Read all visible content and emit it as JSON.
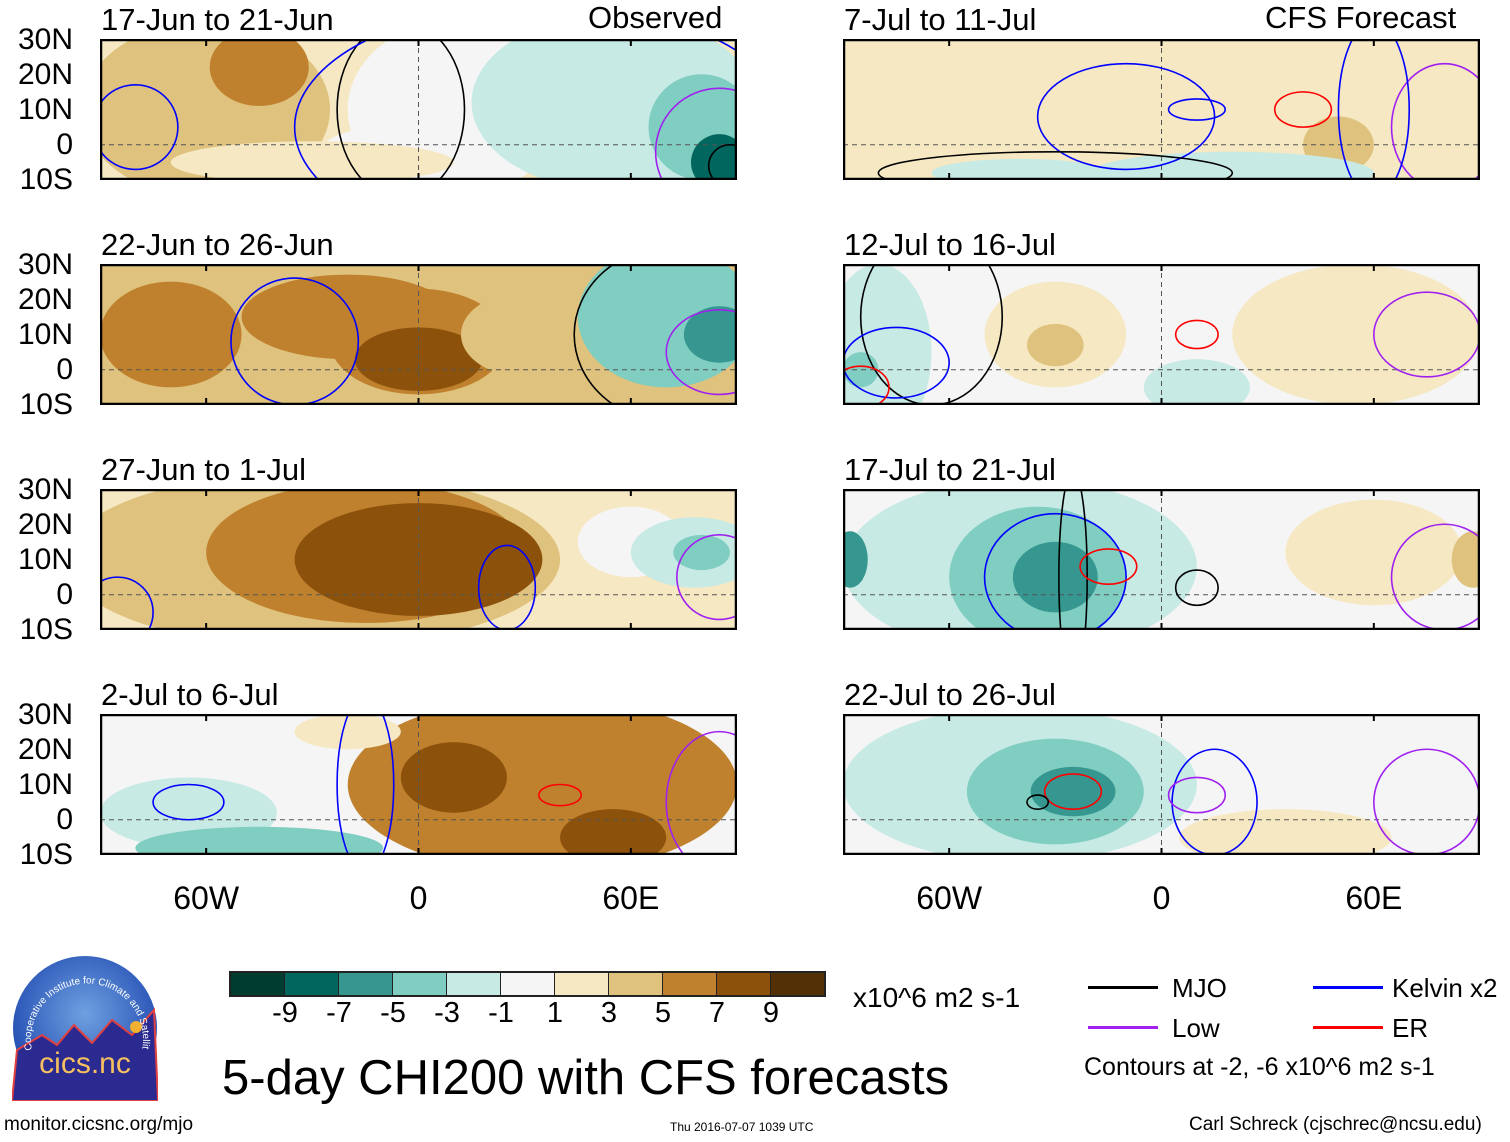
{
  "colorbar": {
    "colors": [
      "#003c30",
      "#01665e",
      "#35978f",
      "#80cdc1",
      "#c7eae5",
      "#f5f5f5",
      "#f6e8c3",
      "#dfc27d",
      "#bf812d",
      "#8c510a",
      "#543005"
    ],
    "bounds": [
      -9,
      -7,
      -5,
      -3,
      -1,
      1,
      3,
      5,
      7,
      9
    ],
    "labels": [
      "-9",
      "-7",
      "-5",
      "-3",
      "-1",
      "1",
      "3",
      "5",
      "7",
      "9"
    ],
    "units": "x10^6 m2 s-1"
  },
  "legend": {
    "items": [
      {
        "label": "MJO",
        "color": "#000000"
      },
      {
        "label": "Kelvin x2",
        "color": "#0000ff"
      },
      {
        "label": "Low",
        "color": "#a020f0"
      },
      {
        "label": "ER",
        "color": "#ff0000"
      }
    ],
    "contours_note": "Contours at -2, -6 x10^6 m2 s-1"
  },
  "title": "5-day CHI200 with CFS forecasts",
  "footer": {
    "url": "monitor.cicsnc.org/mjo",
    "timestamp": "Thu 2016-07-07 1039 UTC",
    "author": "Carl Schreck (cjschrec@ncsu.edu)"
  },
  "logo": {
    "text": "cics.nc",
    "arc_text": "Cooperative Institute for Climate and Satellites"
  },
  "axes": {
    "lat_labels": [
      "30N",
      "20N",
      "10N",
      "0",
      "10S"
    ],
    "lon_labels": [
      "60W",
      "0",
      "60E"
    ],
    "lon_range": [
      -90,
      90
    ],
    "lat_range": [
      -10,
      30
    ]
  },
  "columns": {
    "left_header": "Observed",
    "right_header": "CFS Forecast"
  },
  "panels": [
    {
      "title": "17-Jun to 21-Jun",
      "col": 0,
      "row": 0,
      "bg": 2,
      "blobs": [
        [
          -60,
          10,
          35,
          25,
          4
        ],
        [
          -45,
          22,
          14,
          11,
          6
        ],
        [
          -75,
          12,
          12,
          10,
          4
        ],
        [
          -10,
          -5,
          20,
          10,
          0
        ],
        [
          10,
          10,
          30,
          25,
          0
        ],
        [
          55,
          12,
          40,
          25,
          -2
        ],
        [
          80,
          5,
          15,
          15,
          -4
        ],
        [
          85,
          -5,
          8,
          8,
          -8
        ],
        [
          -30,
          -5,
          40,
          6,
          2
        ]
      ],
      "contours": [
        [
          "mjo",
          -5,
          10,
          18,
          25
        ],
        [
          "kelvin",
          -80,
          5,
          12,
          12
        ],
        [
          "kelvin",
          35,
          5,
          70,
          35
        ],
        [
          "low",
          85,
          -2,
          18,
          18
        ],
        [
          "mjo",
          88,
          -6,
          6,
          6
        ]
      ]
    },
    {
      "title": "22-Jun to 26-Jun",
      "col": 0,
      "row": 1,
      "bg": 5,
      "blobs": [
        [
          -40,
          12,
          60,
          25,
          4
        ],
        [
          -70,
          10,
          20,
          15,
          6
        ],
        [
          -20,
          15,
          30,
          12,
          6
        ],
        [
          0,
          8,
          25,
          15,
          6
        ],
        [
          0,
          3,
          18,
          9,
          8
        ],
        [
          30,
          10,
          18,
          12,
          4
        ],
        [
          70,
          15,
          25,
          20,
          -4
        ],
        [
          85,
          10,
          10,
          8,
          -6
        ]
      ],
      "contours": [
        [
          "kelvin",
          -35,
          8,
          18,
          18
        ],
        [
          "mjo",
          72,
          10,
          28,
          25
        ],
        [
          "low",
          85,
          5,
          15,
          12
        ]
      ]
    },
    {
      "title": "27-Jun to 1-Jul",
      "col": 0,
      "row": 2,
      "bg": 3,
      "blobs": [
        [
          -30,
          10,
          70,
          25,
          4
        ],
        [
          -15,
          12,
          45,
          20,
          6
        ],
        [
          0,
          10,
          35,
          16,
          8
        ],
        [
          60,
          15,
          15,
          10,
          0
        ],
        [
          78,
          12,
          18,
          10,
          -2
        ],
        [
          80,
          12,
          8,
          5,
          -4
        ]
      ],
      "contours": [
        [
          "kelvin",
          -85,
          -5,
          10,
          10
        ],
        [
          "kelvin",
          25,
          2,
          8,
          12
        ],
        [
          "low",
          85,
          5,
          12,
          12
        ]
      ]
    },
    {
      "title": "2-Jul to 6-Jul",
      "col": 0,
      "row": 3,
      "bg": 0,
      "blobs": [
        [
          35,
          10,
          55,
          25,
          6
        ],
        [
          10,
          12,
          15,
          10,
          8
        ],
        [
          55,
          -5,
          15,
          8,
          8
        ],
        [
          -65,
          2,
          25,
          10,
          -2
        ],
        [
          -45,
          -8,
          35,
          6,
          -4
        ],
        [
          -20,
          25,
          15,
          5,
          2
        ]
      ],
      "contours": [
        [
          "kelvin",
          -65,
          5,
          10,
          5
        ],
        [
          "er",
          40,
          7,
          6,
          3
        ],
        [
          "low",
          85,
          5,
          15,
          20
        ],
        [
          "kelvin",
          -15,
          10,
          8,
          25
        ]
      ]
    },
    {
      "title": "7-Jul to 11-Jul",
      "col": 1,
      "row": 0,
      "bg": 2,
      "blobs": [
        [
          -60,
          15,
          30,
          15,
          2
        ],
        [
          55,
          10,
          30,
          25,
          2
        ],
        [
          50,
          0,
          10,
          8,
          4
        ],
        [
          20,
          -8,
          40,
          6,
          -2
        ],
        [
          -40,
          -8,
          25,
          4,
          -2
        ]
      ],
      "contours": [
        [
          "kelvin",
          -10,
          8,
          25,
          15
        ],
        [
          "er",
          40,
          10,
          8,
          5
        ],
        [
          "kelvin",
          10,
          10,
          8,
          3
        ],
        [
          "mjo",
          -30,
          -8,
          50,
          6
        ],
        [
          "low",
          80,
          5,
          15,
          18
        ],
        [
          "kelvin",
          60,
          10,
          10,
          25
        ]
      ]
    },
    {
      "title": "12-Jul to 16-Jul",
      "col": 1,
      "row": 1,
      "bg": 0,
      "blobs": [
        [
          -30,
          10,
          20,
          15,
          2
        ],
        [
          -30,
          7,
          8,
          6,
          4
        ],
        [
          -80,
          5,
          15,
          25,
          -2
        ],
        [
          -85,
          0,
          5,
          5,
          -4
        ],
        [
          55,
          10,
          35,
          20,
          2
        ],
        [
          10,
          -5,
          15,
          8,
          -2
        ]
      ],
      "contours": [
        [
          "mjo",
          -65,
          15,
          20,
          25
        ],
        [
          "kelvin",
          -75,
          2,
          15,
          10
        ],
        [
          "er",
          -85,
          -5,
          8,
          6
        ],
        [
          "er",
          10,
          10,
          6,
          4
        ],
        [
          "low",
          75,
          10,
          15,
          12
        ]
      ]
    },
    {
      "title": "17-Jul to 21-Jul",
      "col": 1,
      "row": 2,
      "bg": 0,
      "blobs": [
        [
          -40,
          8,
          50,
          25,
          -2
        ],
        [
          -35,
          5,
          25,
          20,
          -4
        ],
        [
          -30,
          5,
          12,
          10,
          -6
        ],
        [
          -88,
          10,
          5,
          8,
          -6
        ],
        [
          60,
          12,
          25,
          15,
          2
        ],
        [
          88,
          10,
          6,
          8,
          4
        ]
      ],
      "contours": [
        [
          "kelvin",
          -30,
          5,
          20,
          18
        ],
        [
          "mjo",
          -25,
          5,
          4,
          30
        ],
        [
          "er",
          -15,
          8,
          8,
          5
        ],
        [
          "mjo",
          10,
          2,
          6,
          5
        ],
        [
          "low",
          80,
          5,
          15,
          15
        ]
      ]
    },
    {
      "title": "22-Jul to 26-Jul",
      "col": 1,
      "row": 3,
      "bg": 0,
      "blobs": [
        [
          -40,
          10,
          50,
          22,
          -2
        ],
        [
          -30,
          8,
          25,
          15,
          -4
        ],
        [
          -25,
          8,
          12,
          7,
          -6
        ],
        [
          35,
          -5,
          30,
          8,
          2
        ]
      ],
      "contours": [
        [
          "er",
          -25,
          8,
          8,
          5
        ],
        [
          "kelvin",
          15,
          5,
          12,
          15
        ],
        [
          "low",
          10,
          7,
          8,
          5
        ],
        [
          "mjo",
          -35,
          5,
          3,
          2
        ],
        [
          "low",
          75,
          5,
          15,
          15
        ]
      ]
    }
  ]
}
